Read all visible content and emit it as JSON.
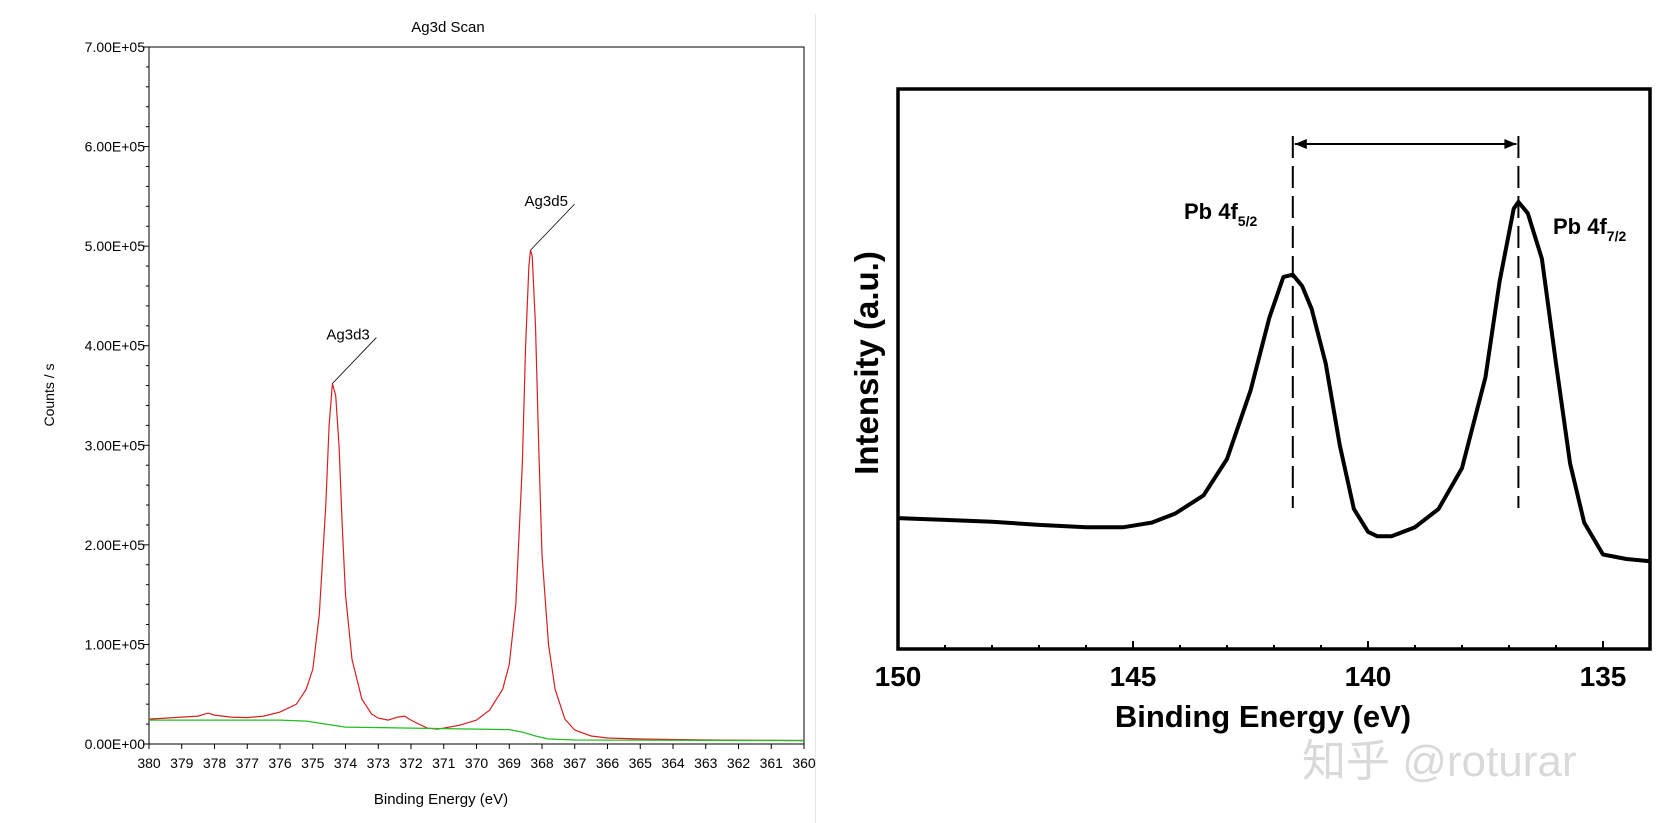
{
  "charts": {
    "left": {
      "title": "Ag3d Scan",
      "xlabel": "Binding Energy (eV)",
      "ylabel": "Counts / s"
    },
    "right": {
      "xlabel": "Binding Energy (eV)",
      "ylabel": "Intensity (a.u.)",
      "peak1_label_main": "Pb 4f",
      "peak1_label_sub": "5/2",
      "peak2_label_main": "Pb 4f",
      "peak2_label_sub": "7/2"
    }
  },
  "watermark": {
    "text": "知乎 @roturar"
  },
  "colors": {
    "left_spectrum": "#d62020",
    "left_background": "#22bb22",
    "right_spectrum": "#000000",
    "axis": "#000000",
    "watermark": "#d9d9d9"
  },
  "chart_data": [
    {
      "type": "line",
      "title": "Ag3d Scan",
      "xlabel": "Binding Energy (eV)",
      "ylabel": "Counts / s",
      "xlim": [
        380,
        360
      ],
      "ylim": [
        0,
        700000
      ],
      "x_ticks": [
        380,
        379,
        378,
        377,
        376,
        375,
        374,
        373,
        372,
        371,
        370,
        369,
        368,
        367,
        366,
        365,
        364,
        363,
        362,
        361,
        360
      ],
      "y_ticks": [
        0,
        100000,
        200000,
        300000,
        400000,
        500000,
        600000,
        700000
      ],
      "y_tick_labels": [
        "0.00E+00",
        "1.00E+05",
        "2.00E+05",
        "3.00E+05",
        "4.00E+05",
        "5.00E+05",
        "6.00E+05",
        "7.00E+05"
      ],
      "series": [
        {
          "name": "spectrum",
          "color": "#d62020",
          "points": [
            [
              380,
              25000
            ],
            [
              379.5,
              26000
            ],
            [
              379,
              27000
            ],
            [
              378.5,
              28000
            ],
            [
              378.2,
              31000
            ],
            [
              378,
              29000
            ],
            [
              377.5,
              27000
            ],
            [
              377,
              26500
            ],
            [
              376.5,
              28000
            ],
            [
              376,
              32000
            ],
            [
              375.5,
              40000
            ],
            [
              375.2,
              55000
            ],
            [
              375,
              75000
            ],
            [
              374.8,
              130000
            ],
            [
              374.6,
              240000
            ],
            [
              374.5,
              320000
            ],
            [
              374.4,
              362000
            ],
            [
              374.3,
              350000
            ],
            [
              374.2,
              300000
            ],
            [
              374.1,
              220000
            ],
            [
              374,
              150000
            ],
            [
              373.8,
              85000
            ],
            [
              373.5,
              45000
            ],
            [
              373.2,
              30000
            ],
            [
              373,
              26000
            ],
            [
              372.7,
              24000
            ],
            [
              372.4,
              27000
            ],
            [
              372.2,
              28000
            ],
            [
              372,
              24000
            ],
            [
              371.7,
              19000
            ],
            [
              371.5,
              16000
            ],
            [
              371.2,
              15000
            ],
            [
              371,
              16000
            ],
            [
              370.5,
              19000
            ],
            [
              370,
              24000
            ],
            [
              369.6,
              34000
            ],
            [
              369.2,
              55000
            ],
            [
              369,
              80000
            ],
            [
              368.8,
              140000
            ],
            [
              368.6,
              280000
            ],
            [
              368.5,
              400000
            ],
            [
              368.4,
              480000
            ],
            [
              368.35,
              496000
            ],
            [
              368.3,
              490000
            ],
            [
              368.2,
              420000
            ],
            [
              368.1,
              300000
            ],
            [
              368,
              190000
            ],
            [
              367.8,
              100000
            ],
            [
              367.6,
              55000
            ],
            [
              367.3,
              25000
            ],
            [
              367,
              14000
            ],
            [
              366.5,
              8000
            ],
            [
              366,
              6000
            ],
            [
              365,
              5000
            ],
            [
              364,
              4500
            ],
            [
              363,
              4000
            ],
            [
              362,
              3800
            ],
            [
              361,
              3600
            ],
            [
              360,
              3500
            ]
          ]
        },
        {
          "name": "background",
          "color": "#22bb22",
          "points": [
            [
              380,
              24000
            ],
            [
              376,
              24000
            ],
            [
              375.2,
              23000
            ],
            [
              374.6,
              20000
            ],
            [
              374,
              17000
            ],
            [
              372,
              16000
            ],
            [
              370,
              15000
            ],
            [
              369,
              14500
            ],
            [
              368.6,
              12000
            ],
            [
              368.2,
              8000
            ],
            [
              367.8,
              5000
            ],
            [
              367,
              4000
            ],
            [
              365,
              3800
            ],
            [
              362,
              3500
            ],
            [
              360,
              3400
            ]
          ]
        }
      ],
      "annotations": [
        {
          "text": "Ag3d3",
          "x": 374.4,
          "y": 362000
        },
        {
          "text": "Ag3d5",
          "x": 368.35,
          "y": 496000
        }
      ]
    },
    {
      "type": "line",
      "xlabel": "Binding Energy (eV)",
      "ylabel": "Intensity (a.u.)",
      "xlim": [
        150,
        134
      ],
      "ylim": [
        0,
        100
      ],
      "x_ticks": [
        150,
        145,
        140,
        135
      ],
      "series": [
        {
          "name": "Pb 4f",
          "color": "#000000",
          "points": [
            [
              150,
              18
            ],
            [
              149,
              17.6
            ],
            [
              148,
              17.2
            ],
            [
              147,
              16.5
            ],
            [
              146,
              16
            ],
            [
              145.2,
              16
            ],
            [
              144.6,
              17
            ],
            [
              144.1,
              19
            ],
            [
              143.5,
              23
            ],
            [
              143,
              31
            ],
            [
              142.5,
              46
            ],
            [
              142.1,
              62
            ],
            [
              141.8,
              71
            ],
            [
              141.6,
              71.5
            ],
            [
              141.4,
              69
            ],
            [
              141.2,
              64
            ],
            [
              140.9,
              52
            ],
            [
              140.6,
              34
            ],
            [
              140.3,
              20
            ],
            [
              140.0,
              15
            ],
            [
              139.8,
              14
            ],
            [
              139.5,
              14
            ],
            [
              139.0,
              16
            ],
            [
              138.5,
              20
            ],
            [
              138.0,
              29
            ],
            [
              137.5,
              49
            ],
            [
              137.2,
              70
            ],
            [
              136.9,
              86
            ],
            [
              136.8,
              87.5
            ],
            [
              136.6,
              85
            ],
            [
              136.3,
              75
            ],
            [
              136.0,
              52
            ],
            [
              135.7,
              30
            ],
            [
              135.4,
              17
            ],
            [
              135.0,
              10
            ],
            [
              134.5,
              9
            ],
            [
              134,
              8.5
            ]
          ]
        }
      ],
      "annotations": [
        {
          "text": "Pb 4f5/2",
          "x": 141.6
        },
        {
          "text": "Pb 4f7/2",
          "x": 136.8
        }
      ],
      "peak_markers": [
        141.6,
        136.8
      ]
    }
  ]
}
